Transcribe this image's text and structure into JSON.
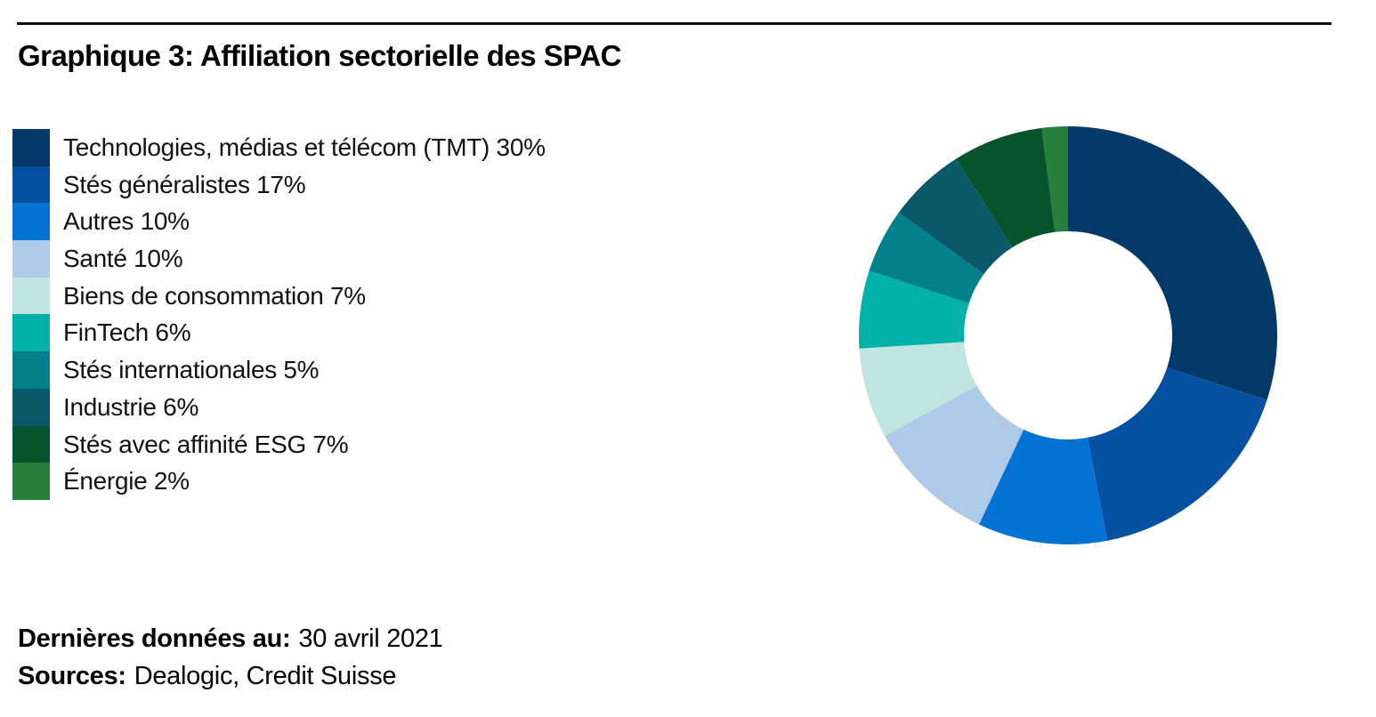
{
  "page": {
    "title": "Graphique 3: Affiliation sectorielle des SPAC"
  },
  "footer": {
    "last_data_label": "Dernières données au:",
    "last_data_value": "30 avril 2021",
    "sources_label": "Sources:",
    "sources_value": "Dealogic, Credit Suisse"
  },
  "chart_data": {
    "type": "pie",
    "subtype": "donut",
    "title": "Graphique 3: Affiliation sectorielle des SPAC",
    "start_angle_deg": 0,
    "direction": "clockwise",
    "inner_radius_ratio": 0.5,
    "legend_position": "left",
    "unit": "%",
    "segments": [
      {
        "label": "Technologies, médias et télécom (TMT)",
        "value": 30,
        "display": "Technologies, médias et télécom (TMT) 30%",
        "color": "#053A68"
      },
      {
        "label": "Stés généralistes",
        "value": 17,
        "display": "Stés généralistes 17%",
        "color": "#0550A0"
      },
      {
        "label": "Autres",
        "value": 10,
        "display": "Autres 10%",
        "color": "#0473D4"
      },
      {
        "label": "Santé",
        "value": 10,
        "display": "Santé 10%",
        "color": "#AFC9E9"
      },
      {
        "label": "Biens de consommation",
        "value": 7,
        "display": "Biens de consommation 7%",
        "color": "#BEE5E0"
      },
      {
        "label": "FinTech",
        "value": 6,
        "display": "FinTech 6%",
        "color": "#00B1A9"
      },
      {
        "label": "Stés internationales",
        "value": 5,
        "display": "Stés internationales 5%",
        "color": "#02808B"
      },
      {
        "label": "Industrie",
        "value": 6,
        "display": "Industrie 6%",
        "color": "#09596A"
      },
      {
        "label": "Stés avec affinité ESG",
        "value": 7,
        "display": "Stés avec affinité ESG 7%",
        "color": "#05542B"
      },
      {
        "label": "Énergie",
        "value": 2,
        "display": "Énergie 2%",
        "color": "#27803A"
      }
    ]
  }
}
